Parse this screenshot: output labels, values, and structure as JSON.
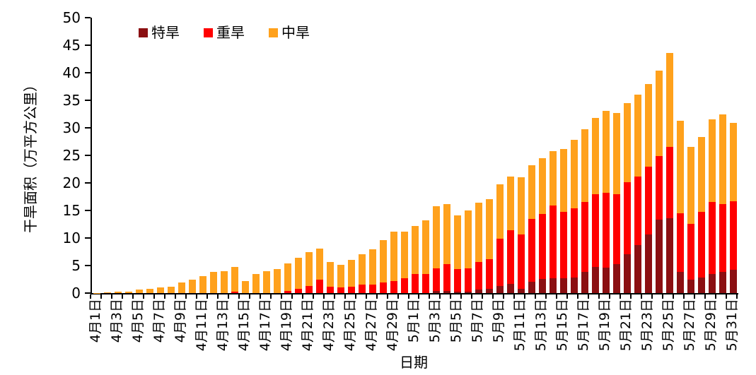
{
  "chart_data": {
    "type": "bar",
    "stacked": true,
    "xlabel": "日期",
    "ylabel": "干旱面积（万平方公里）",
    "ylim": [
      0,
      50
    ],
    "y_ticks": [
      0,
      5,
      10,
      15,
      20,
      25,
      30,
      35,
      40,
      45,
      50
    ],
    "x_label_every": 2,
    "grid": false,
    "legend_position": "top-inside",
    "axis_color": "#000000",
    "background_color": "#ffffff",
    "categories": [
      "4月1日",
      "4月2日",
      "4月3日",
      "4月4日",
      "4月5日",
      "4月6日",
      "4月7日",
      "4月8日",
      "4月9日",
      "4月10日",
      "4月11日",
      "4月12日",
      "4月13日",
      "4月14日",
      "4月15日",
      "4月16日",
      "4月17日",
      "4月18日",
      "4月19日",
      "4月20日",
      "4月21日",
      "4月22日",
      "4月23日",
      "4月24日",
      "4月25日",
      "4月26日",
      "4月27日",
      "4月28日",
      "4月29日",
      "4月30日",
      "5月1日",
      "5月2日",
      "5月3日",
      "5月4日",
      "5月5日",
      "5月6日",
      "5月7日",
      "5月8日",
      "5月9日",
      "5月10日",
      "5月11日",
      "5月12日",
      "5月13日",
      "5月14日",
      "5月15日",
      "5月16日",
      "5月17日",
      "5月18日",
      "5月19日",
      "5月20日",
      "5月21日",
      "5月22日",
      "5月23日",
      "5月24日",
      "5月25日",
      "5月26日",
      "5月27日",
      "5月28日",
      "5月29日",
      "5月30日",
      "5月31日"
    ],
    "series": [
      {
        "name": "特旱",
        "color": "#8B0F12",
        "values": [
          0,
          0,
          0,
          0,
          0,
          0,
          0,
          0,
          0,
          0,
          0,
          0,
          0,
          0,
          0,
          0,
          0,
          0,
          0,
          0,
          0,
          0,
          0,
          0,
          0,
          0,
          0,
          0,
          0,
          0,
          0,
          0,
          0.4,
          0.4,
          0.3,
          0.3,
          0.6,
          0.8,
          1.3,
          1.7,
          0.8,
          2.0,
          2.6,
          2.7,
          2.7,
          2.8,
          3.9,
          4.7,
          4.6,
          5.3,
          7.1,
          8.7,
          10.7,
          13.3,
          13.6,
          3.9,
          2.4,
          2.8,
          3.5,
          3.8,
          4.2
        ]
      },
      {
        "name": "重旱",
        "color": "#FF0000",
        "values": [
          0,
          0,
          0,
          0,
          0,
          0,
          0,
          0,
          0,
          0,
          0,
          0,
          0,
          0.3,
          0,
          0,
          0,
          0,
          0.4,
          0.8,
          1.3,
          2.5,
          1.1,
          1.0,
          1.2,
          1.5,
          1.6,
          1.9,
          2.2,
          2.7,
          3.4,
          3.5,
          4.1,
          4.9,
          4.0,
          4.2,
          5.1,
          5.3,
          8.6,
          9.7,
          9.9,
          11.5,
          11.7,
          13.2,
          12.1,
          12.6,
          12.7,
          13.3,
          13.6,
          12.7,
          13.0,
          12.5,
          12.2,
          11.6,
          12.9,
          10.6,
          10.2,
          12.0,
          13.0,
          12.4,
          12.5
        ]
      },
      {
        "name": "中旱",
        "color": "#FFA11C",
        "values": [
          0.05,
          0.1,
          0.2,
          0.3,
          0.7,
          0.8,
          1.0,
          1.2,
          1.9,
          2.4,
          3.1,
          3.8,
          4.0,
          4.4,
          2.2,
          3.5,
          4.0,
          4.3,
          5.0,
          5.6,
          6.1,
          5.6,
          4.5,
          4.1,
          4.8,
          5.6,
          6.4,
          7.7,
          8.9,
          8.4,
          8.8,
          9.7,
          11.3,
          10.8,
          9.8,
          10.5,
          10.7,
          10.9,
          9.8,
          9.8,
          10.3,
          9.7,
          10.2,
          9.9,
          11.4,
          12.4,
          13.2,
          13.8,
          14.9,
          14.7,
          14.4,
          14.8,
          15.1,
          15.5,
          17.1,
          16.8,
          13.9,
          13.5,
          15.1,
          16.2,
          14.2
        ]
      }
    ]
  }
}
